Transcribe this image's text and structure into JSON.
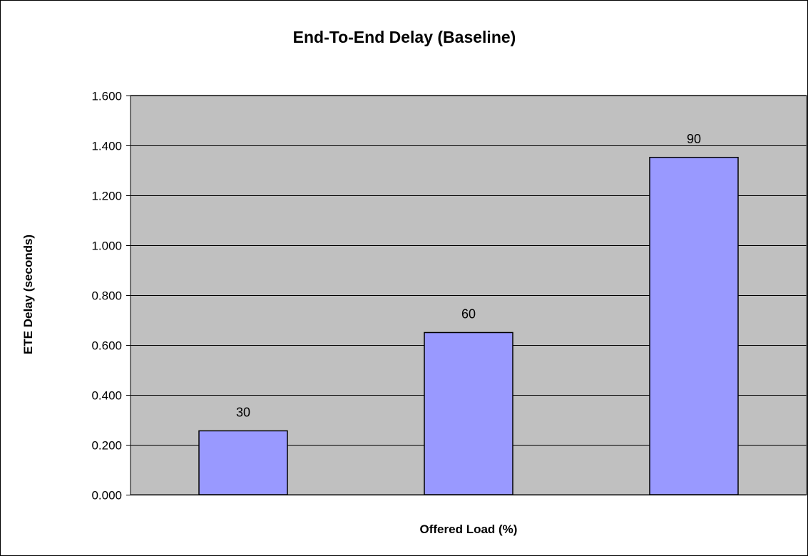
{
  "chart_data": {
    "type": "bar",
    "title": "End-To-End Delay (Baseline)",
    "xlabel": "Offered Load (%)",
    "ylabel": "ETE Delay (seconds)",
    "ylim": [
      0,
      1.6
    ],
    "yticks": [
      "0.000",
      "0.200",
      "0.400",
      "0.600",
      "0.800",
      "1.000",
      "1.200",
      "1.400",
      "1.600"
    ],
    "grid": true,
    "legend": "none",
    "categories": [
      "30",
      "60",
      "90"
    ],
    "values": [
      0.256,
      0.65,
      1.352
    ],
    "data_labels": [
      "30",
      "60",
      "90"
    ],
    "colors": {
      "plot_background": "#c0c0c0",
      "bar_fill": "#9999ff",
      "bar_stroke": "#000000",
      "gridline": "#000000"
    }
  }
}
